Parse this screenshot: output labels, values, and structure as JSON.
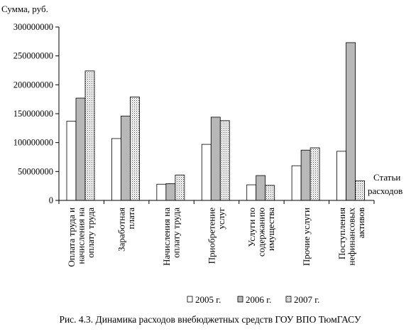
{
  "chart_data": {
    "type": "bar",
    "title": "Рис. 4.3. Динамика расходов внебюджетных средств ГОУ ВПО ТюмГАСУ",
    "ylabel": "Сумма, руб.",
    "xlabel": [
      "Статьи",
      "расходов"
    ],
    "ylim": [
      0,
      300000000
    ],
    "yticks": [
      0,
      50000000,
      100000000,
      150000000,
      200000000,
      250000000,
      300000000
    ],
    "ytick_labels": [
      "0",
      "50000000",
      "100000000",
      "150000000",
      "200000000",
      "250000000",
      "300000000"
    ],
    "grid": false,
    "legend_position": "bottom",
    "categories": [
      [
        "Оплата труда и",
        "начисления на",
        "оплату труда"
      ],
      [
        "Заработная",
        "плата"
      ],
      [
        "Начисления на",
        "оплату труда"
      ],
      [
        "Приобретение",
        "услуг"
      ],
      [
        "Услуги по",
        "содержанию",
        "имущества"
      ],
      [
        "Прочие услуги"
      ],
      [
        "Поступления",
        "нефинансовых",
        "активов"
      ]
    ],
    "series": [
      {
        "name": "2005 г.",
        "fill": "#ffffff",
        "values": [
          137000000,
          107000000,
          28000000,
          97000000,
          27000000,
          60000000,
          85000000
        ]
      },
      {
        "name": "2006 г.",
        "fill": "#b8b8b8",
        "values": [
          177000000,
          146000000,
          29000000,
          144000000,
          43000000,
          87000000,
          273000000
        ]
      },
      {
        "name": "2007 г.",
        "fill": "dots",
        "values": [
          224000000,
          179000000,
          44000000,
          138000000,
          26000000,
          91000000,
          34000000
        ]
      }
    ]
  }
}
